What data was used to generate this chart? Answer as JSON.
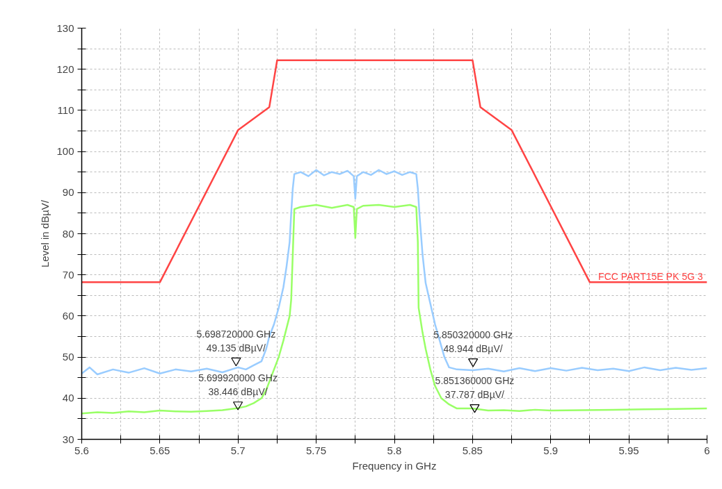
{
  "chart_data": {
    "type": "line",
    "xlabel": "Frequency in GHz",
    "ylabel": "Level in dBµV/",
    "xlim": [
      5.6,
      6
    ],
    "ylim": [
      30,
      130
    ],
    "xticks": [
      5.6,
      {
        "value": 5.625,
        "label": null
      },
      5.65,
      {
        "value": 5.675,
        "label": null
      },
      5.7,
      {
        "value": 5.725,
        "label": null
      },
      5.75,
      {
        "value": 5.775,
        "label": null
      },
      5.8,
      {
        "value": 5.825,
        "label": null
      },
      5.85,
      {
        "value": 5.875,
        "label": null
      },
      5.9,
      {
        "value": 5.925,
        "label": null
      },
      5.95,
      {
        "value": 5.975,
        "label": null
      },
      6
    ],
    "yticks": [
      30,
      {
        "value": 35,
        "label": null
      },
      40,
      {
        "value": 45,
        "label": null
      },
      50,
      {
        "value": 55,
        "label": null
      },
      60,
      {
        "value": 65,
        "label": null
      },
      70,
      {
        "value": 75,
        "label": null
      },
      80,
      {
        "value": 85,
        "label": null
      },
      90,
      {
        "value": 95,
        "label": null
      },
      100,
      {
        "value": 105,
        "label": null
      },
      110,
      {
        "value": 115,
        "label": null
      },
      120,
      {
        "value": 125,
        "label": null
      },
      130
    ],
    "grid": true,
    "line_style": "solid",
    "series": [
      {
        "color": "#99ccff",
        "x": [
          5.6,
          5.605,
          5.61,
          5.62,
          5.63,
          5.64,
          5.65,
          5.66,
          5.67,
          5.68,
          5.69,
          5.7,
          5.705,
          5.71,
          5.715,
          5.718,
          5.72,
          5.723,
          5.726,
          5.729,
          5.731,
          5.733,
          5.734,
          5.735,
          5.736,
          5.74,
          5.745,
          5.75,
          5.755,
          5.76,
          5.765,
          5.77,
          5.774,
          5.775,
          5.776,
          5.78,
          5.785,
          5.79,
          5.795,
          5.8,
          5.805,
          5.81,
          5.814,
          5.815,
          5.816,
          5.818,
          5.82,
          5.823,
          5.826,
          5.829,
          5.832,
          5.835,
          5.84,
          5.85,
          5.86,
          5.87,
          5.88,
          5.89,
          5.9,
          5.91,
          5.92,
          5.93,
          5.94,
          5.95,
          5.96,
          5.97,
          5.98,
          5.99,
          6
        ],
        "values": [
          46,
          47.5,
          45.8,
          47,
          46.2,
          47.3,
          46,
          47,
          46.5,
          47.2,
          46.3,
          47.5,
          47,
          48,
          49,
          52,
          55,
          58,
          62,
          67,
          72,
          78,
          85,
          91,
          94.5,
          95,
          94,
          95.5,
          94.2,
          95,
          94.5,
          95.3,
          94,
          88.5,
          94,
          95,
          94.3,
          95.5,
          94.5,
          95.2,
          94.3,
          95,
          94.5,
          91,
          85,
          75,
          68,
          63,
          58,
          54,
          50,
          47.5,
          47,
          46.8,
          47.2,
          46.5,
          47.3,
          46.6,
          47.3,
          46.7,
          47.4,
          46.8,
          47.2,
          46.6,
          47.5,
          46.8,
          47.4,
          46.9,
          47.3
        ]
      },
      {
        "color": "#99ff66",
        "x": [
          5.6,
          5.61,
          5.62,
          5.63,
          5.64,
          5.65,
          5.66,
          5.67,
          5.68,
          5.69,
          5.7,
          5.705,
          5.71,
          5.715,
          5.718,
          5.72,
          5.723,
          5.726,
          5.729,
          5.731,
          5.733,
          5.734,
          5.735,
          5.736,
          5.74,
          5.75,
          5.76,
          5.77,
          5.774,
          5.775,
          5.776,
          5.78,
          5.79,
          5.8,
          5.81,
          5.814,
          5.815,
          5.8155,
          5.818,
          5.82,
          5.823,
          5.826,
          5.83,
          5.835,
          5.84,
          5.85,
          5.86,
          5.87,
          5.88,
          5.89,
          5.9,
          5.92,
          5.94,
          5.96,
          5.98,
          6
        ],
        "values": [
          36.3,
          36.6,
          36.4,
          36.8,
          36.6,
          37,
          36.8,
          36.7,
          36.9,
          37.1,
          37.6,
          38,
          38.8,
          40,
          42,
          44,
          47,
          50,
          54,
          57,
          60,
          64,
          75,
          86,
          86.5,
          87,
          86.3,
          87,
          86.5,
          79,
          86,
          86.8,
          87,
          86.5,
          87,
          86.5,
          78,
          62,
          56,
          52,
          47,
          43,
          40,
          38.5,
          37.5,
          37.5,
          37,
          37.1,
          36.9,
          37.2,
          37,
          37.1,
          37.2,
          37.3,
          37.4,
          37.5
        ]
      },
      {
        "name": "FCC PART15E PK 5G 3",
        "color": "#ff4444",
        "x": [
          5.6,
          5.65,
          5.7,
          5.72,
          5.725,
          5.85,
          5.855,
          5.875,
          5.925,
          6
        ],
        "values": [
          68.2,
          68.2,
          105.2,
          110.8,
          122.2,
          122.2,
          110.8,
          105.2,
          68.2,
          68.2
        ]
      }
    ],
    "annotations": [
      {
        "text": "5.698720000 GHz\n49.135 dBµV/",
        "x": 5.69872,
        "y": 49.135
      },
      {
        "text": "5.699920000 GHz\n38.446 dBµV/",
        "x": 5.69992,
        "y": 38.446
      },
      {
        "text": "5.850320000 GHz\n48.944 dBµV/",
        "x": 5.85032,
        "y": 48.944
      },
      {
        "text": "5.851360000 GHz\n37.787 dBµV/",
        "x": 5.85136,
        "y": 37.787
      }
    ]
  }
}
